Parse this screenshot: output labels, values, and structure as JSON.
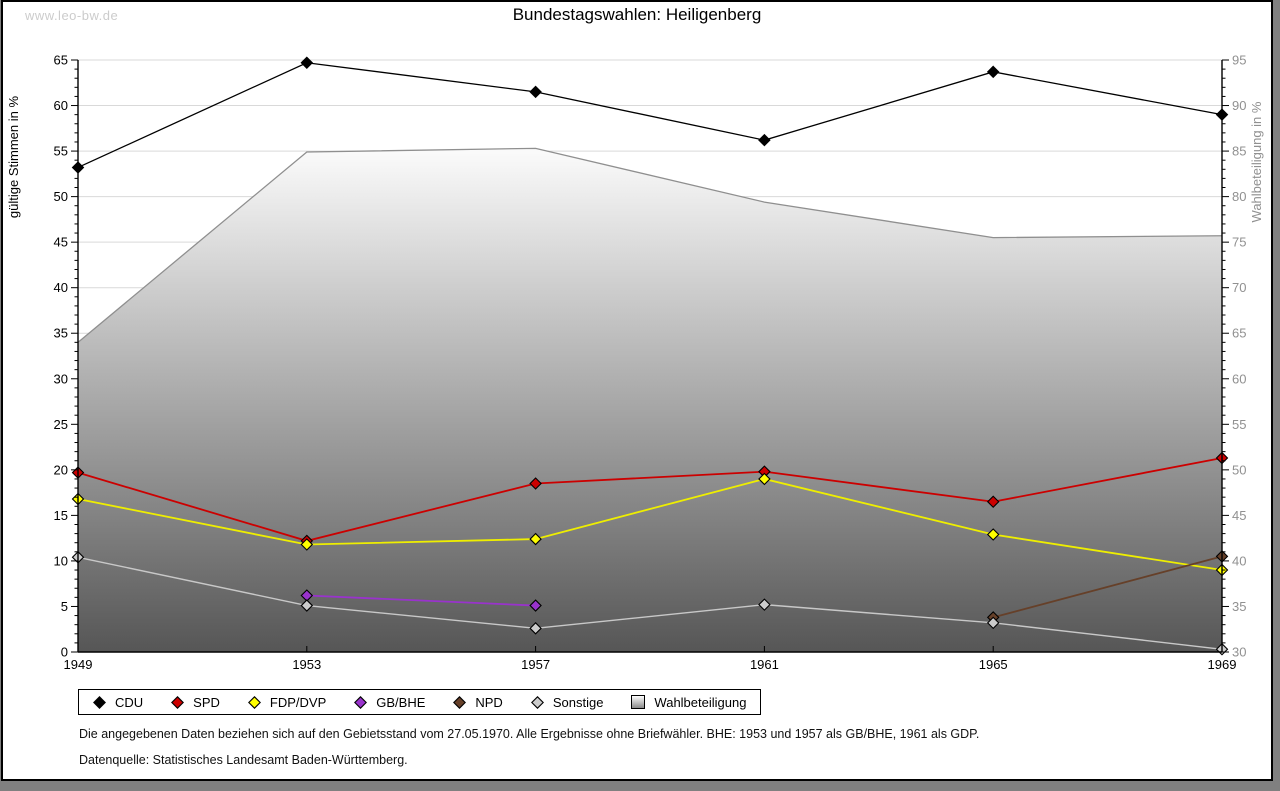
{
  "watermark": "www.leo-bw.de",
  "title": "Bundestagswahlen: Heiligenberg",
  "footnotes": {
    "line1": "Die angegebenen Daten beziehen sich auf den Gebietsstand vom 27.05.1970. Alle Ergebnisse ohne Briefwähler. BHE: 1953 und 1957 als GB/BHE, 1961 als GDP.",
    "line2": "Datenquelle: Statistisches Landesamt Baden-Württemberg."
  },
  "chart_data": {
    "type": "line",
    "title": "Bundestagswahlen: Heiligenberg",
    "x": [
      1949,
      1953,
      1957,
      1961,
      1965,
      1969
    ],
    "left_axis": {
      "label": "gültige Stimmen in %",
      "range": [
        0,
        65
      ],
      "tick_step": 5,
      "minor_step": 1
    },
    "right_axis": {
      "label": "Wahlbeteiligung in %",
      "range": [
        30,
        95
      ],
      "tick_step": 5,
      "minor_step": 1
    },
    "grid": true,
    "legend_position": "bottom",
    "series": [
      {
        "name": "CDU",
        "axis": "left",
        "style": "line",
        "color": "#000000",
        "marker": "diamond",
        "marker_fill": "#000000",
        "values": [
          53.2,
          64.7,
          61.5,
          56.2,
          63.7,
          59.0
        ]
      },
      {
        "name": "SPD",
        "axis": "left",
        "style": "line",
        "color": "#cc0000",
        "marker": "diamond",
        "marker_fill": "#cc0000",
        "values": [
          19.7,
          12.2,
          18.5,
          19.8,
          16.5,
          21.3
        ]
      },
      {
        "name": "FDP/DVP",
        "axis": "left",
        "style": "line",
        "color": "#eeee00",
        "marker": "diamond",
        "marker_fill": "#ffff00",
        "values": [
          16.8,
          11.8,
          12.4,
          19.0,
          12.9,
          9.0
        ]
      },
      {
        "name": "GB/BHE",
        "axis": "left",
        "style": "line",
        "color": "#9933cc",
        "marker": "diamond",
        "marker_fill": "#9933cc",
        "values": [
          null,
          6.2,
          5.1,
          null,
          null,
          null
        ]
      },
      {
        "name": "NPD",
        "axis": "left",
        "style": "line",
        "color": "#664029",
        "marker": "diamond",
        "marker_fill": "#664029",
        "values": [
          null,
          null,
          null,
          null,
          3.8,
          10.5
        ]
      },
      {
        "name": "Sonstige",
        "axis": "left",
        "style": "line",
        "color": "#c8c8c8",
        "marker": "diamond",
        "marker_fill": "#cccccc",
        "values": [
          10.4,
          5.1,
          2.6,
          5.2,
          3.2,
          0.3
        ]
      },
      {
        "name": "Wahlbeteiligung",
        "axis": "right",
        "style": "area",
        "color": "#8f8f8f",
        "marker": "square",
        "marker_fill": "#bbbbbb",
        "values": [
          64.0,
          84.9,
          85.3,
          79.4,
          75.5,
          75.7
        ]
      }
    ],
    "style": {
      "grid_color": "#d9d9d9",
      "axis_color": "#000000",
      "right_axis_text_color": "#909090",
      "area_gradient_top": "#ffffff",
      "area_gradient_bottom": "#565656",
      "outer_background": "#808080"
    }
  }
}
